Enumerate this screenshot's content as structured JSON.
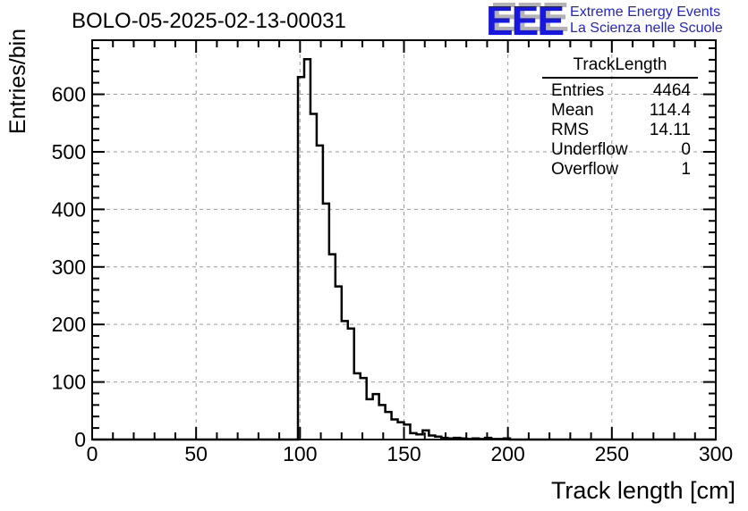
{
  "page": {
    "title": "BOLO-05-2025-02-13-00031"
  },
  "logo": {
    "acronym": "EEE",
    "line1": "Extreme Energy Events",
    "line2": "La Scienza nelle Scuole",
    "acronym_color": "#1717dd",
    "text_color": "#2222dd",
    "shadow_color": "#b3b3b3"
  },
  "stats": {
    "title": "TrackLength",
    "rows": [
      {
        "label": "Entries",
        "value": "4464"
      },
      {
        "label": "Mean",
        "value": "114.4"
      },
      {
        "label": "RMS",
        "value": "14.11"
      },
      {
        "label": "Underflow",
        "value": "0"
      },
      {
        "label": "Overflow",
        "value": "1"
      }
    ]
  },
  "chart_data": {
    "type": "bar",
    "subtype": "histogram-step",
    "title": "BOLO-05-2025-02-13-00031",
    "xlabel": "Track length [cm]",
    "ylabel": "Entries/bin",
    "xlim": [
      0,
      300
    ],
    "ylim": [
      0,
      694
    ],
    "xticks": [
      0,
      50,
      100,
      150,
      200,
      250,
      300
    ],
    "yticks": [
      0,
      100,
      200,
      300,
      400,
      500,
      600
    ],
    "x_minor_step": 10,
    "y_minor_step": 20,
    "grid": true,
    "grid_color": "#999999",
    "line_color": "#000000",
    "bin_width": 3,
    "bin_start": 99,
    "counts": [
      630,
      661,
      566,
      511,
      410,
      322,
      266,
      206,
      193,
      115,
      107,
      70,
      79,
      60,
      48,
      35,
      30,
      26,
      11,
      9,
      16,
      7,
      5,
      3,
      2,
      3,
      2,
      1,
      2,
      1,
      3,
      1,
      1,
      2
    ]
  }
}
